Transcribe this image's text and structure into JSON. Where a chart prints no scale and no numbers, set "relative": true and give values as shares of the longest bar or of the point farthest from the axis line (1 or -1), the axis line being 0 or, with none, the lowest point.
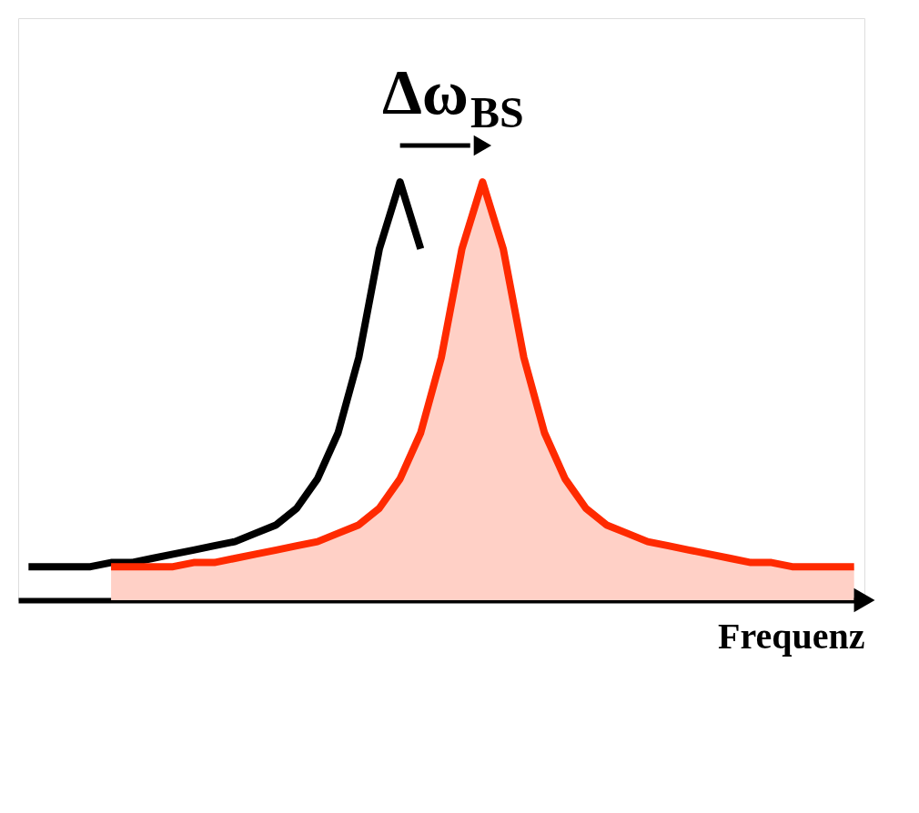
{
  "chart_data": {
    "type": "line",
    "relative": true,
    "xlabel": "Frequenz",
    "annotations": [
      "Δω$_{BS}$"
    ],
    "categories": [
      null,
      null,
      null,
      null,
      null,
      null,
      null,
      null,
      null,
      null,
      null,
      null,
      null,
      null,
      null,
      null,
      null,
      null,
      null,
      null,
      null,
      null,
      null,
      null,
      null,
      null,
      null,
      null,
      null,
      null,
      null,
      null,
      null,
      null,
      null,
      null,
      null,
      null,
      null,
      null,
      null
    ],
    "grid": false,
    "marker": "none",
    "line_style": "solid",
    "series": [
      {
        "color": "#000000",
        "values": [
          0.08,
          0.08,
          0.08,
          0.08,
          0.09,
          0.09,
          0.1,
          0.11,
          0.12,
          0.13,
          0.14,
          0.16,
          0.18,
          0.22,
          0.29,
          0.4,
          0.58,
          0.84,
          1.0,
          0.84,
          null,
          null,
          null,
          null,
          null,
          null,
          null,
          null,
          null,
          null,
          null,
          null,
          null,
          null,
          null,
          null,
          null,
          null,
          null,
          null,
          null
        ]
      },
      {
        "type": "area",
        "color": "#ff2a00",
        "values": [
          null,
          null,
          null,
          null,
          0.08,
          0.08,
          0.08,
          0.08,
          0.09,
          0.09,
          0.1,
          0.11,
          0.12,
          0.13,
          0.14,
          0.16,
          0.18,
          0.22,
          0.29,
          0.4,
          0.58,
          0.84,
          1.0,
          0.84,
          0.58,
          0.4,
          0.29,
          0.22,
          0.18,
          0.16,
          0.14,
          0.13,
          0.12,
          0.11,
          0.1,
          0.09,
          0.09,
          0.08,
          0.08,
          0.08,
          0.08
        ]
      }
    ]
  }
}
